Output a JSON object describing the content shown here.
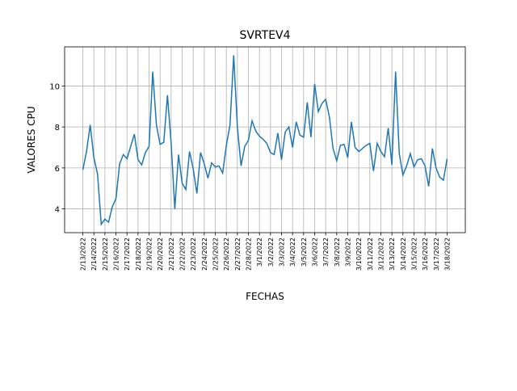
{
  "chart_data": {
    "type": "line",
    "title": "SVRTEV4",
    "xlabel": "FECHAS",
    "ylabel": "VALORES CPU",
    "color": "#1f77b4",
    "grid": true,
    "x": [
      19036,
      19036.333,
      19036.667,
      19037,
      19037.333,
      19037.667,
      19038,
      19038.333,
      19038.667,
      19039,
      19039.333,
      19039.667,
      19040,
      19040.333,
      19040.667,
      19041,
      19041.333,
      19041.667,
      19042,
      19042.333,
      19042.667,
      19043,
      19043.333,
      19043.667,
      19044,
      19044.333,
      19044.667,
      19045,
      19045.333,
      19045.667,
      19046,
      19046.333,
      19046.667,
      19047,
      19047.333,
      19047.667,
      19048,
      19048.333,
      19048.667,
      19049,
      19049.333,
      19049.667,
      19050,
      19050.333,
      19050.667,
      19051,
      19051.333,
      19051.667,
      19052,
      19052.333,
      19052.667,
      19053,
      19053.333,
      19053.667,
      19054,
      19054.333,
      19054.667,
      19055,
      19055.333,
      19055.667,
      19056,
      19056.333,
      19056.667,
      19057,
      19057.333,
      19057.667,
      19058,
      19058.333,
      19058.667,
      19059,
      19059.333,
      19059.667,
      19060,
      19060.333,
      19060.667,
      19061,
      19061.333,
      19061.667,
      19062,
      19062.333,
      19062.667,
      19063,
      19063.333,
      19063.667,
      19064,
      19064.333,
      19064.667,
      19065,
      19065.333,
      19065.667,
      19066,
      19066.333,
      19066.667,
      19067,
      19067.333,
      19067.667,
      19068,
      19068.333,
      19068.667,
      19069
    ],
    "values": [
      5.9,
      6.8,
      8.1,
      6.5,
      5.7,
      3.25,
      3.5,
      3.35,
      4.1,
      4.5,
      6.2,
      6.65,
      6.45,
      7.05,
      7.65,
      6.4,
      6.15,
      6.75,
      7.05,
      10.7,
      8.1,
      7.15,
      7.25,
      9.55,
      7.2,
      4.0,
      6.65,
      5.25,
      4.95,
      6.8,
      5.95,
      4.75,
      6.75,
      6.2,
      5.5,
      6.25,
      6.05,
      6.1,
      5.75,
      7.1,
      8.1,
      11.5,
      8.0,
      6.1,
      7.05,
      7.35,
      8.3,
      7.8,
      7.55,
      7.4,
      7.2,
      6.75,
      6.65,
      7.7,
      6.4,
      7.75,
      8.0,
      7.0,
      8.25,
      7.6,
      7.5,
      9.2,
      7.5,
      10.1,
      8.75,
      9.15,
      9.35,
      8.5,
      6.95,
      6.35,
      7.1,
      7.15,
      6.5,
      8.25,
      7.0,
      6.8,
      6.95,
      7.1,
      7.2,
      5.85,
      7.2,
      6.8,
      6.55,
      7.95,
      6.15,
      10.7,
      6.7,
      5.65,
      6.1,
      6.7,
      6.05,
      6.4,
      6.45,
      6.1,
      5.1,
      6.95,
      6.0,
      5.55,
      5.4,
      6.45
    ],
    "xlim": [
      19034.35,
      19070.65
    ],
    "xticks": [
      {
        "value": 19036,
        "label": "2/13/2022"
      },
      {
        "value": 19037,
        "label": "2/14/2022"
      },
      {
        "value": 19038,
        "label": "2/15/2022"
      },
      {
        "value": 19039,
        "label": "2/16/2022"
      },
      {
        "value": 19040,
        "label": "2/17/2022"
      },
      {
        "value": 19041,
        "label": "2/18/2022"
      },
      {
        "value": 19042,
        "label": "2/19/2022"
      },
      {
        "value": 19043,
        "label": "2/20/2022"
      },
      {
        "value": 19044,
        "label": "2/21/2022"
      },
      {
        "value": 19045,
        "label": "2/22/2022"
      },
      {
        "value": 19046,
        "label": "2/23/2022"
      },
      {
        "value": 19047,
        "label": "2/24/2022"
      },
      {
        "value": 19048,
        "label": "2/25/2022"
      },
      {
        "value": 19049,
        "label": "2/26/2022"
      },
      {
        "value": 19050,
        "label": "2/27/2022"
      },
      {
        "value": 19051,
        "label": "2/28/2022"
      },
      {
        "value": 19052,
        "label": "3/1/2022"
      },
      {
        "value": 19053,
        "label": "3/2/2022"
      },
      {
        "value": 19054,
        "label": "3/3/2022"
      },
      {
        "value": 19055,
        "label": "3/4/2022"
      },
      {
        "value": 19056,
        "label": "3/5/2022"
      },
      {
        "value": 19057,
        "label": "3/6/2022"
      },
      {
        "value": 19058,
        "label": "3/7/2022"
      },
      {
        "value": 19059,
        "label": "3/8/2022"
      },
      {
        "value": 19060,
        "label": "3/9/2022"
      },
      {
        "value": 19061,
        "label": "3/10/2022"
      },
      {
        "value": 19062,
        "label": "3/11/2022"
      },
      {
        "value": 19063,
        "label": "3/12/2022"
      },
      {
        "value": 19064,
        "label": "3/13/2022"
      },
      {
        "value": 19065,
        "label": "3/14/2022"
      },
      {
        "value": 19066,
        "label": "3/15/2022"
      },
      {
        "value": 19067,
        "label": "3/16/2022"
      },
      {
        "value": 19068,
        "label": "3/17/2022"
      },
      {
        "value": 19069,
        "label": "3/18/2022"
      }
    ],
    "ylim": [
      2.84,
      11.91
    ],
    "yticks": [
      4,
      6,
      8,
      10
    ]
  }
}
